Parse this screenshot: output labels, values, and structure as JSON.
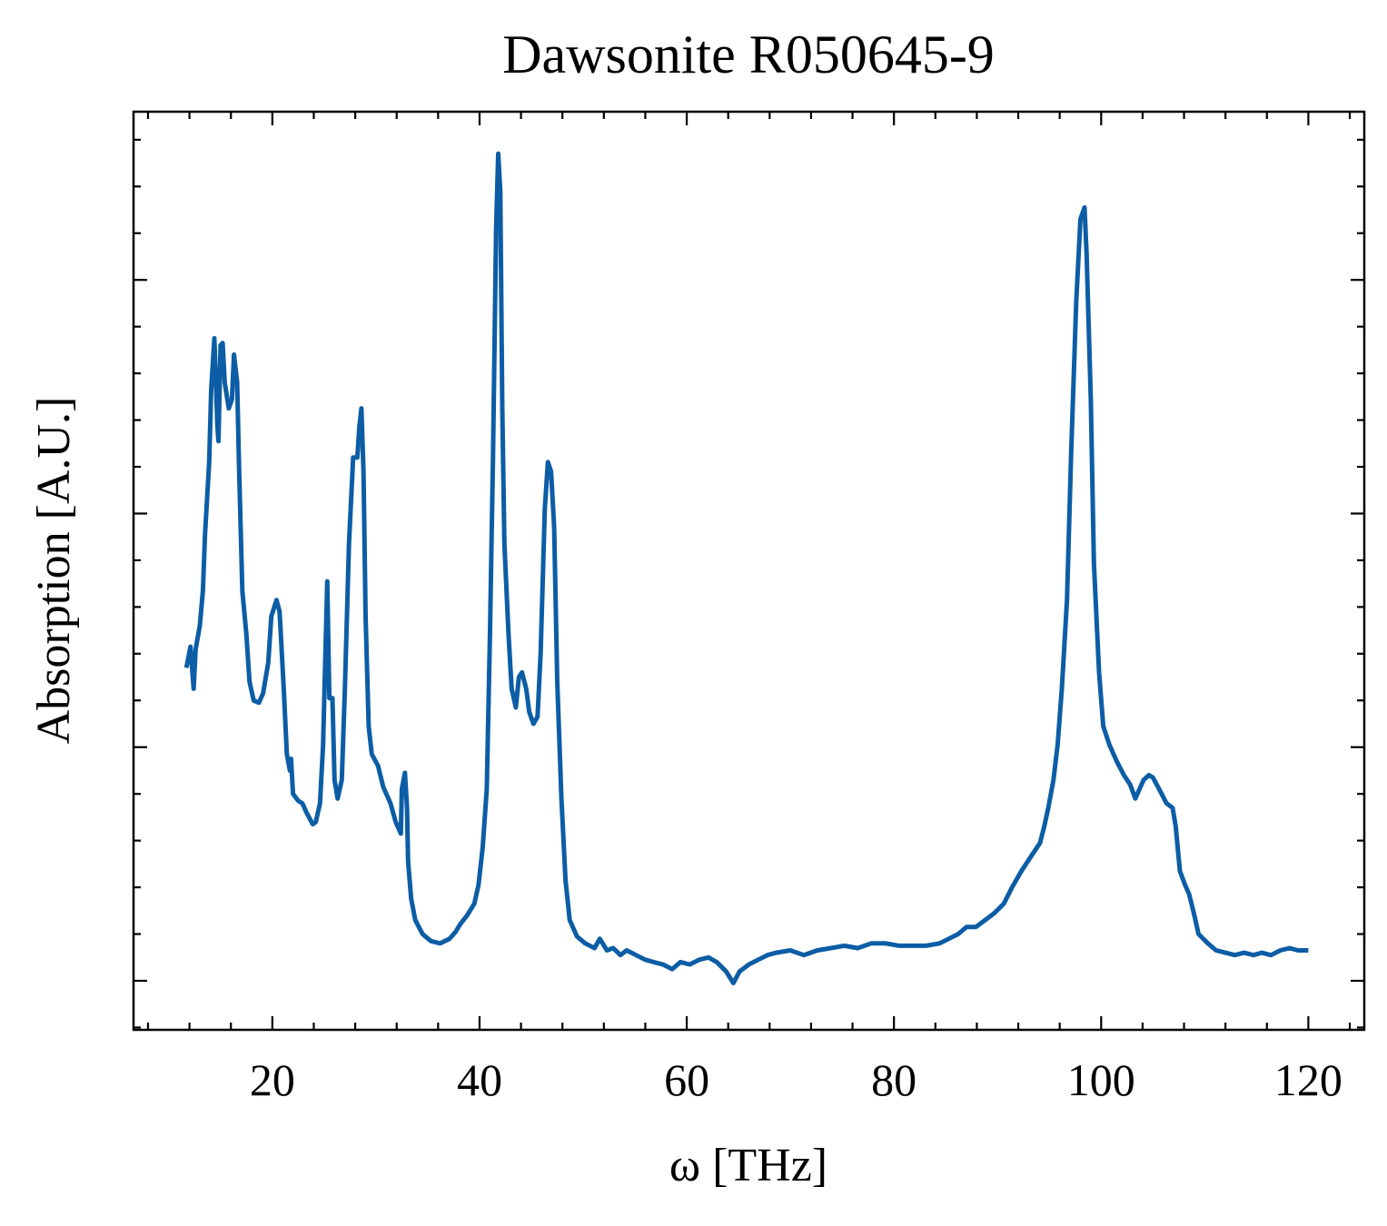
{
  "chart_data": {
    "type": "line",
    "title": "Dawsonite R050645-9",
    "x_label": "ω [THz]",
    "y_label": "Absorption [A.U.]",
    "xlim": [
      6.6,
      125.4
    ],
    "ylim": [
      -0.21,
      3.72
    ],
    "xticks": [
      20,
      40,
      60,
      80,
      100,
      120
    ],
    "xticks_minor": [
      8,
      12,
      16,
      24,
      28,
      32,
      36,
      44,
      48,
      52,
      56,
      64,
      68,
      72,
      76,
      84,
      88,
      92,
      96,
      104,
      108,
      112,
      116,
      124
    ],
    "yticks": [
      0,
      1,
      2,
      3
    ],
    "yticks_minor": [
      -0.2,
      0.2,
      0.4,
      0.6,
      0.8,
      1.2,
      1.4,
      1.6,
      1.8,
      2.2,
      2.4,
      2.6,
      2.8,
      3.2,
      3.4,
      3.6
    ],
    "ytick_labels": false,
    "ticks_inside": true,
    "ticks_mirrored": true,
    "grid": false,
    "series": [
      {
        "color": "#0c5da5",
        "x": [
          11.7,
          12.1,
          12.4,
          12.6,
          13.0,
          13.3,
          13.5,
          13.9,
          14.1,
          14.4,
          14.7,
          14.8,
          15.0,
          15.2,
          15.4,
          15.8,
          16.1,
          16.3,
          16.6,
          16.8,
          17.1,
          17.5,
          17.8,
          18.2,
          18.7,
          19.1,
          19.6,
          19.9,
          20.4,
          20.7,
          21.1,
          21.4,
          21.7,
          21.8,
          22.0,
          22.5,
          22.9,
          23.3,
          23.9,
          24.2,
          24.6,
          24.9,
          25.3,
          25.5,
          25.8,
          26.0,
          26.3,
          26.7,
          27.0,
          27.4,
          27.8,
          28.2,
          28.4,
          28.6,
          28.8,
          29.0,
          29.3,
          29.6,
          30.2,
          30.7,
          31.4,
          31.9,
          32.4,
          32.5,
          32.8,
          33.0,
          33.1,
          33.4,
          33.8,
          34.5,
          35.3,
          36.2,
          37.1,
          37.7,
          38.1,
          38.8,
          39.5,
          39.9,
          40.3,
          40.7,
          41.0,
          41.3,
          41.6,
          41.8,
          42.0,
          42.2,
          42.4,
          42.8,
          43.1,
          43.5,
          43.8,
          44.1,
          44.5,
          44.8,
          45.2,
          45.6,
          45.9,
          46.3,
          46.6,
          46.9,
          47.2,
          47.5,
          47.9,
          48.3,
          48.7,
          49.4,
          50.2,
          51.1,
          51.6,
          52.3,
          52.9,
          53.6,
          54.2,
          55.1,
          56.0,
          56.8,
          57.7,
          58.6,
          59.4,
          60.3,
          61.2,
          62.1,
          62.9,
          63.8,
          64.5,
          65.1,
          66.0,
          66.9,
          67.8,
          68.6,
          70.0,
          71.3,
          72.6,
          73.9,
          75.2,
          76.5,
          77.8,
          79.2,
          80.5,
          81.8,
          83.1,
          84.4,
          85.3,
          86.2,
          87.0,
          87.9,
          88.8,
          89.7,
          90.6,
          91.4,
          92.3,
          93.2,
          94.1,
          94.5,
          94.9,
          95.4,
          95.8,
          96.2,
          96.7,
          97.1,
          97.6,
          98.0,
          98.4,
          98.6,
          99.0,
          99.3,
          99.8,
          100.2,
          100.8,
          101.5,
          102.2,
          102.8,
          103.3,
          103.7,
          104.1,
          104.6,
          105.0,
          105.6,
          106.3,
          106.9,
          107.2,
          107.6,
          108.1,
          108.5,
          109.0,
          109.4,
          110.3,
          111.1,
          112.0,
          112.9,
          113.8,
          114.7,
          115.5,
          116.4,
          117.3,
          118.2,
          119.0,
          120.0
        ],
        "values": [
          1.34,
          1.43,
          1.25,
          1.42,
          1.52,
          1.67,
          1.91,
          2.22,
          2.53,
          2.75,
          2.37,
          2.31,
          2.72,
          2.73,
          2.56,
          2.45,
          2.49,
          2.68,
          2.56,
          2.18,
          1.67,
          1.48,
          1.28,
          1.2,
          1.19,
          1.23,
          1.36,
          1.56,
          1.63,
          1.58,
          1.25,
          0.97,
          0.9,
          0.95,
          0.8,
          0.77,
          0.76,
          0.72,
          0.67,
          0.68,
          0.76,
          1.01,
          1.71,
          1.21,
          1.21,
          0.86,
          0.78,
          0.86,
          1.25,
          1.87,
          2.24,
          2.24,
          2.37,
          2.45,
          2.18,
          1.56,
          1.09,
          0.97,
          0.92,
          0.83,
          0.76,
          0.68,
          0.63,
          0.82,
          0.89,
          0.74,
          0.51,
          0.35,
          0.26,
          0.2,
          0.17,
          0.16,
          0.18,
          0.21,
          0.24,
          0.28,
          0.33,
          0.41,
          0.57,
          0.82,
          1.48,
          2.25,
          3.22,
          3.54,
          3.38,
          2.45,
          1.87,
          1.48,
          1.25,
          1.17,
          1.3,
          1.32,
          1.25,
          1.15,
          1.1,
          1.13,
          1.4,
          2.02,
          2.22,
          2.18,
          1.94,
          1.28,
          0.78,
          0.43,
          0.26,
          0.19,
          0.16,
          0.14,
          0.18,
          0.13,
          0.14,
          0.11,
          0.13,
          0.11,
          0.09,
          0.08,
          0.07,
          0.05,
          0.08,
          0.07,
          0.09,
          0.1,
          0.08,
          0.04,
          -0.01,
          0.04,
          0.07,
          0.09,
          0.11,
          0.12,
          0.13,
          0.11,
          0.13,
          0.14,
          0.15,
          0.14,
          0.16,
          0.16,
          0.15,
          0.15,
          0.15,
          0.16,
          0.18,
          0.2,
          0.23,
          0.23,
          0.26,
          0.29,
          0.33,
          0.4,
          0.47,
          0.53,
          0.59,
          0.66,
          0.74,
          0.86,
          1.01,
          1.25,
          1.63,
          2.25,
          2.91,
          3.26,
          3.31,
          3.11,
          2.49,
          1.79,
          1.32,
          1.09,
          1.01,
          0.94,
          0.88,
          0.84,
          0.78,
          0.82,
          0.86,
          0.88,
          0.87,
          0.82,
          0.76,
          0.74,
          0.66,
          0.47,
          0.41,
          0.37,
          0.28,
          0.2,
          0.16,
          0.13,
          0.12,
          0.11,
          0.12,
          0.11,
          0.12,
          0.11,
          0.13,
          0.14,
          0.13,
          0.13
        ]
      }
    ]
  }
}
